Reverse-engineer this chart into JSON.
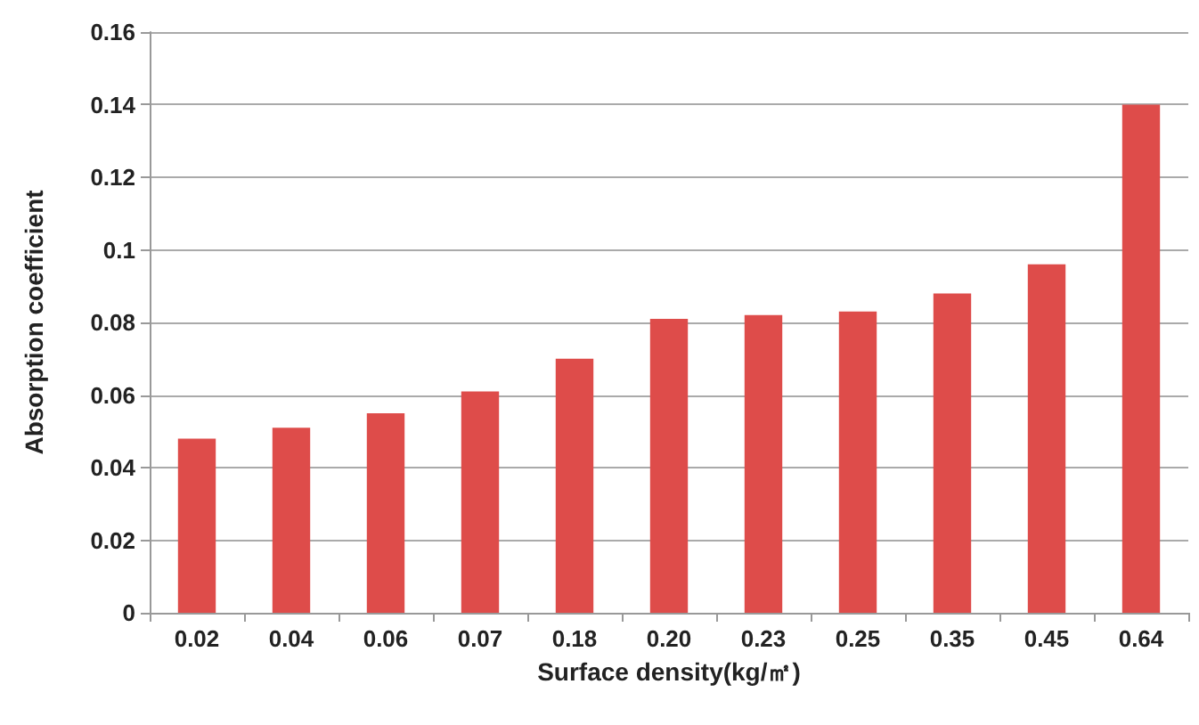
{
  "chart_data": {
    "type": "bar",
    "xlabel": "Surface density(kg/㎡)",
    "ylabel": "Absorption coefficient",
    "categories": [
      "0.02",
      "0.04",
      "0.06",
      "0.07",
      "0.18",
      "0.20",
      "0.23",
      "0.25",
      "0.35",
      "0.45",
      "0.64"
    ],
    "values": [
      0.048,
      0.051,
      0.055,
      0.061,
      0.07,
      0.081,
      0.082,
      0.083,
      0.088,
      0.096,
      0.14
    ],
    "color": "#de4c4a",
    "ylim": [
      0,
      0.16
    ],
    "yticks": [
      0,
      0.02,
      0.04,
      0.06,
      0.08,
      {
        "value": 0.1,
        "label": "0.1"
      },
      0.12,
      0.14,
      0.16
    ],
    "grid": "y"
  }
}
